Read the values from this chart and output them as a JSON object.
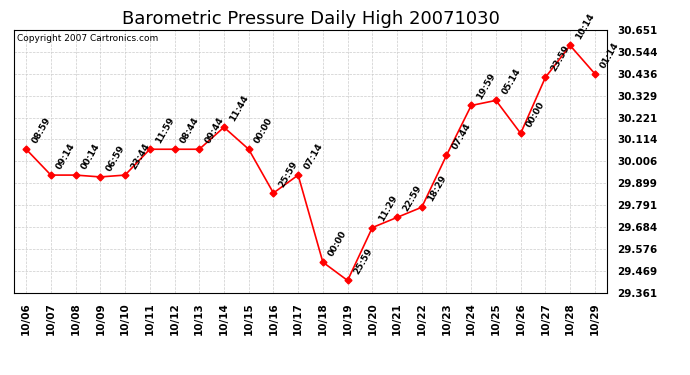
{
  "title": "Barometric Pressure Daily High 20071030",
  "copyright": "Copyright 2007 Cartronics.com",
  "x_labels": [
    "10/06",
    "10/07",
    "10/08",
    "10/09",
    "10/10",
    "10/11",
    "10/12",
    "10/13",
    "10/14",
    "10/15",
    "10/16",
    "10/17",
    "10/18",
    "10/19",
    "10/20",
    "10/21",
    "10/22",
    "10/23",
    "10/24",
    "10/25",
    "10/26",
    "10/27",
    "10/28",
    "10/29"
  ],
  "x_values": [
    0,
    1,
    2,
    3,
    4,
    5,
    6,
    7,
    8,
    9,
    10,
    11,
    12,
    13,
    14,
    15,
    16,
    17,
    18,
    19,
    20,
    21,
    22,
    23
  ],
  "y_values": [
    30.065,
    29.938,
    29.938,
    29.929,
    29.938,
    30.065,
    30.065,
    30.065,
    30.173,
    30.065,
    29.85,
    29.938,
    29.51,
    29.42,
    29.68,
    29.73,
    29.78,
    30.035,
    30.28,
    30.305,
    30.143,
    30.418,
    30.575,
    30.436
  ],
  "point_labels": [
    "08:59",
    "09:14",
    "00:14",
    "06:59",
    "23:44",
    "11:59",
    "08:44",
    "09:44",
    "11:44",
    "00:00",
    "25:59",
    "07:14",
    "00:00",
    "25:59",
    "11:29",
    "22:59",
    "18:29",
    "07:44",
    "19:59",
    "05:14",
    "00:00",
    "23:59",
    "10:14",
    "01:14"
  ],
  "y_min": 29.361,
  "y_max": 30.651,
  "y_ticks": [
    29.361,
    29.469,
    29.576,
    29.684,
    29.791,
    29.899,
    30.006,
    30.114,
    30.221,
    30.329,
    30.436,
    30.544,
    30.651
  ],
  "line_color": "red",
  "marker_color": "red",
  "bg_color": "white",
  "grid_color": "#cccccc",
  "title_fontsize": 13,
  "label_fontsize": 7.5,
  "point_label_fontsize": 6.5,
  "copyright_fontsize": 6.5
}
